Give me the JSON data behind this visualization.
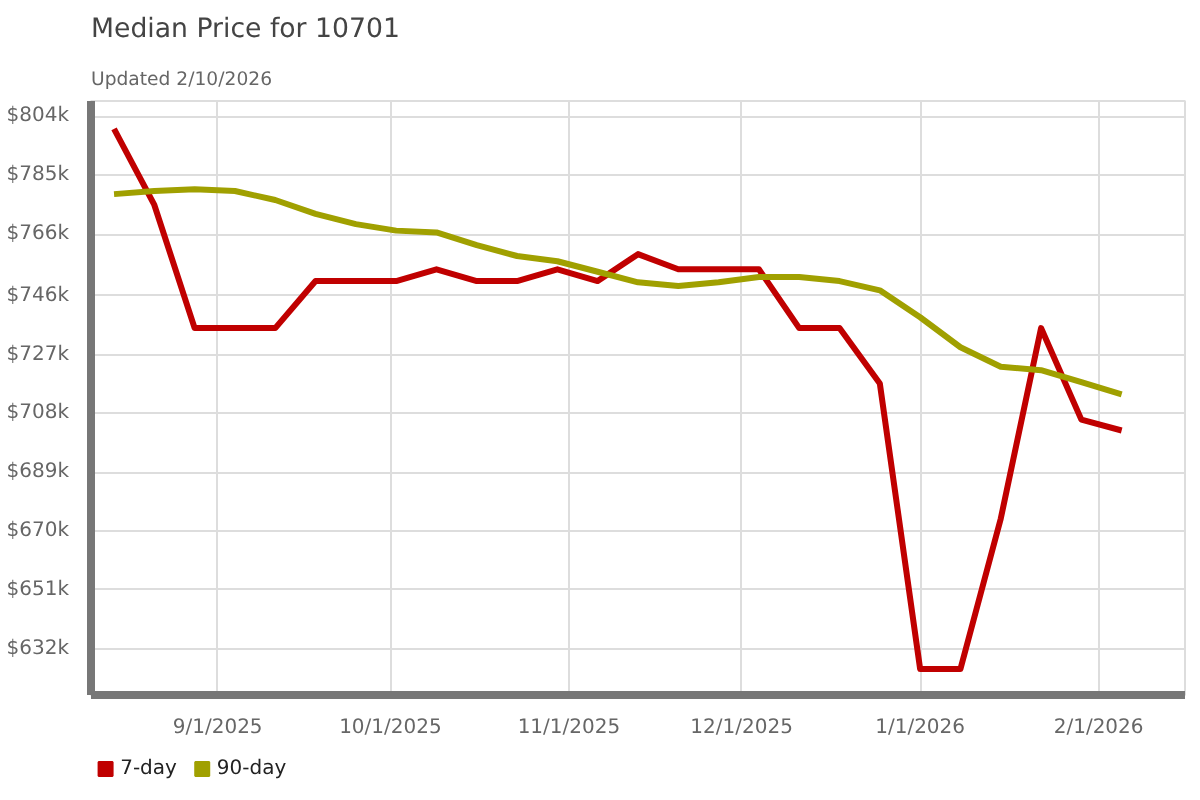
{
  "chart_data": {
    "type": "line",
    "title": "Median Price for 10701",
    "subtitle": "Updated 2/10/2026",
    "x": [
      "2025-08-14",
      "2025-08-21",
      "2025-08-28",
      "2025-09-04",
      "2025-09-11",
      "2025-09-18",
      "2025-09-25",
      "2025-10-02",
      "2025-10-09",
      "2025-10-16",
      "2025-10-23",
      "2025-10-30",
      "2025-11-06",
      "2025-11-13",
      "2025-11-20",
      "2025-11-27",
      "2025-12-04",
      "2025-12-11",
      "2025-12-18",
      "2025-12-25",
      "2026-01-01",
      "2026-01-08",
      "2026-01-15",
      "2026-01-22",
      "2026-01-29",
      "2026-02-05"
    ],
    "series": [
      {
        "name": "7-day",
        "color": "#c00000",
        "values": [
          800,
          775.4,
          735.6,
          735.6,
          735.6,
          750.8,
          750.8,
          750.8,
          754.6,
          750.8,
          750.8,
          754.6,
          750.8,
          759.5,
          754.6,
          754.6,
          754.6,
          735.6,
          735.6,
          717.7,
          625.4,
          625.4,
          674,
          735.6,
          706,
          702.5
        ]
      },
      {
        "name": "90-day",
        "color": "#a0a000",
        "values": [
          778.9,
          779.9,
          780.5,
          779.9,
          777,
          772.5,
          769.2,
          767.1,
          766.5,
          762.4,
          758.9,
          757.2,
          753.8,
          750.4,
          749.2,
          750.4,
          752.1,
          752.1,
          750.8,
          747.8,
          739.1,
          729.4,
          723.1,
          722,
          718.1,
          714.2
        ]
      }
    ],
    "xlim": [
      "2025-08-10",
      "2026-02-16"
    ],
    "xticks": [
      {
        "value": "2025-09-01",
        "label": "9/1/2025"
      },
      {
        "value": "2025-10-01",
        "label": "10/1/2025"
      },
      {
        "value": "2025-11-01",
        "label": "11/1/2025"
      },
      {
        "value": "2025-12-01",
        "label": "12/1/2025"
      },
      {
        "value": "2026-01-01",
        "label": "1/1/2026"
      },
      {
        "value": "2026-02-01",
        "label": "2/1/2026"
      }
    ],
    "ylim": [
      617,
      809
    ],
    "yticks": [
      {
        "value": 632,
        "label": "$632k"
      },
      {
        "value": 651,
        "label": "$651k"
      },
      {
        "value": 670,
        "label": "$670k"
      },
      {
        "value": 689,
        "label": "$689k"
      },
      {
        "value": 708,
        "label": "$708k"
      },
      {
        "value": 727,
        "label": "$727k"
      },
      {
        "value": 746,
        "label": "$746k"
      },
      {
        "value": 766,
        "label": "$766k"
      },
      {
        "value": 785,
        "label": "$785k"
      },
      {
        "value": 804,
        "label": "$804k"
      }
    ],
    "grid": true,
    "legend": "bottom left",
    "marker": "none",
    "line_style": "solid"
  }
}
